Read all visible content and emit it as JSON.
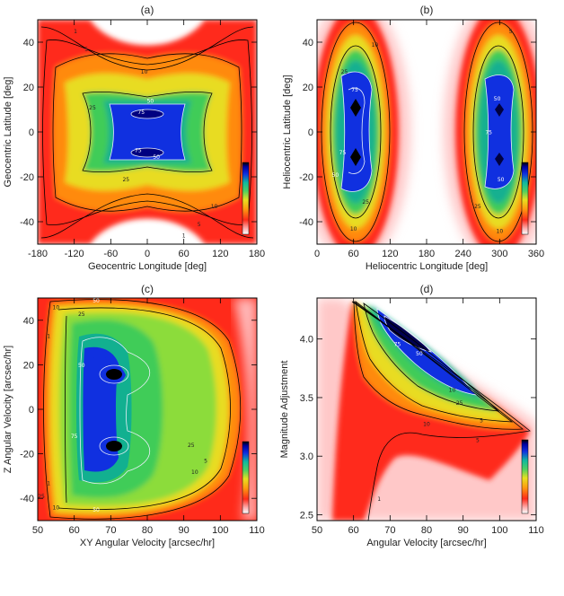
{
  "colors": {
    "background": "#ffffff",
    "axis": "#000000",
    "contour_dark": "#000000",
    "contour_light": "#e8eef8",
    "ramp": [
      "#ffffff",
      "#ffd6d6",
      "#ff4a3a",
      "#ff2a1a",
      "#ff9a10",
      "#e8d818",
      "#9ee030",
      "#44d060",
      "#1ec070",
      "#1088a0",
      "#1020d0",
      "#0000a0",
      "#000000"
    ]
  },
  "chart_data": [
    {
      "id": "a",
      "type": "heatmap",
      "title": "(a)",
      "xlabel": "Geocentric Longitude [deg]",
      "ylabel": "Geocentric Latitude [deg]",
      "xlim": [
        -180,
        180
      ],
      "ylim": [
        -50,
        50
      ],
      "xticks": [
        "-180",
        "-120",
        "-60",
        "0",
        "60",
        "120",
        "180"
      ],
      "xtick_values": [
        -180,
        -120,
        -60,
        0,
        60,
        120,
        180
      ],
      "yticks": [
        "40",
        "20",
        "0",
        "-20",
        "-40"
      ],
      "ytick_values": [
        40,
        20,
        0,
        -20,
        -40
      ],
      "contour_levels": [
        "1",
        "5",
        "10",
        "25",
        "50",
        "75"
      ],
      "labels": [
        {
          "text": "1",
          "x": -118,
          "y": 44
        },
        {
          "text": "5",
          "x": -100,
          "y": 36
        },
        {
          "text": "10",
          "x": -5,
          "y": 26
        },
        {
          "text": "25",
          "x": -90,
          "y": 10
        },
        {
          "text": "50",
          "x": 5,
          "y": 13
        },
        {
          "text": "75",
          "x": -10,
          "y": 8
        },
        {
          "text": "75",
          "x": -15,
          "y": -9
        },
        {
          "text": "50",
          "x": 15,
          "y": -12
        },
        {
          "text": "25",
          "x": -35,
          "y": -22
        },
        {
          "text": "10",
          "x": 110,
          "y": -34
        },
        {
          "text": "5",
          "x": 85,
          "y": -42
        },
        {
          "text": "1",
          "x": 60,
          "y": -47
        }
      ]
    },
    {
      "id": "b",
      "type": "heatmap",
      "title": "(b)",
      "xlabel": "Heliocentric Longitude [deg]",
      "ylabel": "Heliocentric Latitude [deg]",
      "xlim": [
        0,
        360
      ],
      "ylim": [
        -50,
        50
      ],
      "xticks": [
        "0",
        "60",
        "120",
        "180",
        "240",
        "300",
        "360"
      ],
      "xtick_values": [
        0,
        60,
        120,
        180,
        240,
        300,
        360
      ],
      "yticks": [
        "40",
        "20",
        "0",
        "-20",
        "-40"
      ],
      "ytick_values": [
        40,
        20,
        0,
        -20,
        -40
      ],
      "contour_levels": [
        "1",
        "5",
        "10",
        "25",
        "50",
        "75"
      ],
      "labels": [
        {
          "text": "10",
          "x": 95,
          "y": 38
        },
        {
          "text": "25",
          "x": 45,
          "y": 26
        },
        {
          "text": "75",
          "x": 62,
          "y": 18
        },
        {
          "text": "75",
          "x": 42,
          "y": -10
        },
        {
          "text": "50",
          "x": 30,
          "y": -20
        },
        {
          "text": "25",
          "x": 80,
          "y": -32
        },
        {
          "text": "10",
          "x": 60,
          "y": -44
        },
        {
          "text": "5",
          "x": 318,
          "y": 44
        },
        {
          "text": "50",
          "x": 296,
          "y": 14
        },
        {
          "text": "75",
          "x": 282,
          "y": -1
        },
        {
          "text": "50",
          "x": 302,
          "y": -22
        },
        {
          "text": "25",
          "x": 264,
          "y": -34
        },
        {
          "text": "10",
          "x": 300,
          "y": -45
        }
      ]
    },
    {
      "id": "c",
      "type": "heatmap",
      "title": "(c)",
      "xlabel": "XY Angular Velocity [arcsec/hr]",
      "ylabel": "Z Angular Velocity [arcsec/hr]",
      "xlim": [
        50,
        110
      ],
      "ylim": [
        -50,
        50
      ],
      "xticks": [
        "50",
        "60",
        "70",
        "80",
        "90",
        "100",
        "110"
      ],
      "xtick_values": [
        50,
        60,
        70,
        80,
        90,
        100,
        110
      ],
      "yticks": [
        "40",
        "20",
        "0",
        "-20",
        "-40"
      ],
      "ytick_values": [
        40,
        20,
        0,
        -20,
        -40
      ],
      "contour_levels": [
        "1",
        "5",
        "10",
        "25",
        "50",
        "75"
      ],
      "labels": [
        {
          "text": "10",
          "x": 55,
          "y": 45
        },
        {
          "text": "25",
          "x": 62,
          "y": 42
        },
        {
          "text": "50",
          "x": 66,
          "y": 48
        },
        {
          "text": "50",
          "x": 62,
          "y": 19
        },
        {
          "text": "75",
          "x": 60,
          "y": -13
        },
        {
          "text": "25",
          "x": 92,
          "y": -17
        },
        {
          "text": "10",
          "x": 93,
          "y": -29
        },
        {
          "text": "5",
          "x": 96,
          "y": -24
        },
        {
          "text": "25",
          "x": 51,
          "y": -40
        },
        {
          "text": "10",
          "x": 55,
          "y": -45
        },
        {
          "text": "50",
          "x": 66,
          "y": -46
        },
        {
          "text": "1",
          "x": 53,
          "y": 32
        },
        {
          "text": "1",
          "x": 53,
          "y": -34
        }
      ]
    },
    {
      "id": "d",
      "type": "heatmap",
      "title": "(d)",
      "xlabel": "Angular Velocity [arcsec/hr]",
      "ylabel": "Magnitude Adjustment",
      "xlim": [
        50,
        110
      ],
      "ylim": [
        2.45,
        4.35
      ],
      "xticks": [
        "50",
        "60",
        "70",
        "80",
        "90",
        "100",
        "110"
      ],
      "xtick_values": [
        50,
        60,
        70,
        80,
        90,
        100,
        110
      ],
      "yticks": [
        "4.0",
        "3.5",
        "3.0",
        "2.5"
      ],
      "ytick_values": [
        4.0,
        3.5,
        3.0,
        2.5
      ],
      "contour_levels": [
        "1",
        "5",
        "10",
        "25",
        "50",
        "75"
      ],
      "labels": [
        {
          "text": "75",
          "x": 72,
          "y": 3.94
        },
        {
          "text": "50",
          "x": 78,
          "y": 3.86
        },
        {
          "text": "10",
          "x": 87,
          "y": 3.55
        },
        {
          "text": "25",
          "x": 89,
          "y": 3.44
        },
        {
          "text": "5",
          "x": 95,
          "y": 3.29
        },
        {
          "text": "10",
          "x": 80,
          "y": 3.26
        },
        {
          "text": "5",
          "x": 94,
          "y": 3.12
        },
        {
          "text": "1",
          "x": 67,
          "y": 2.62
        }
      ]
    }
  ]
}
